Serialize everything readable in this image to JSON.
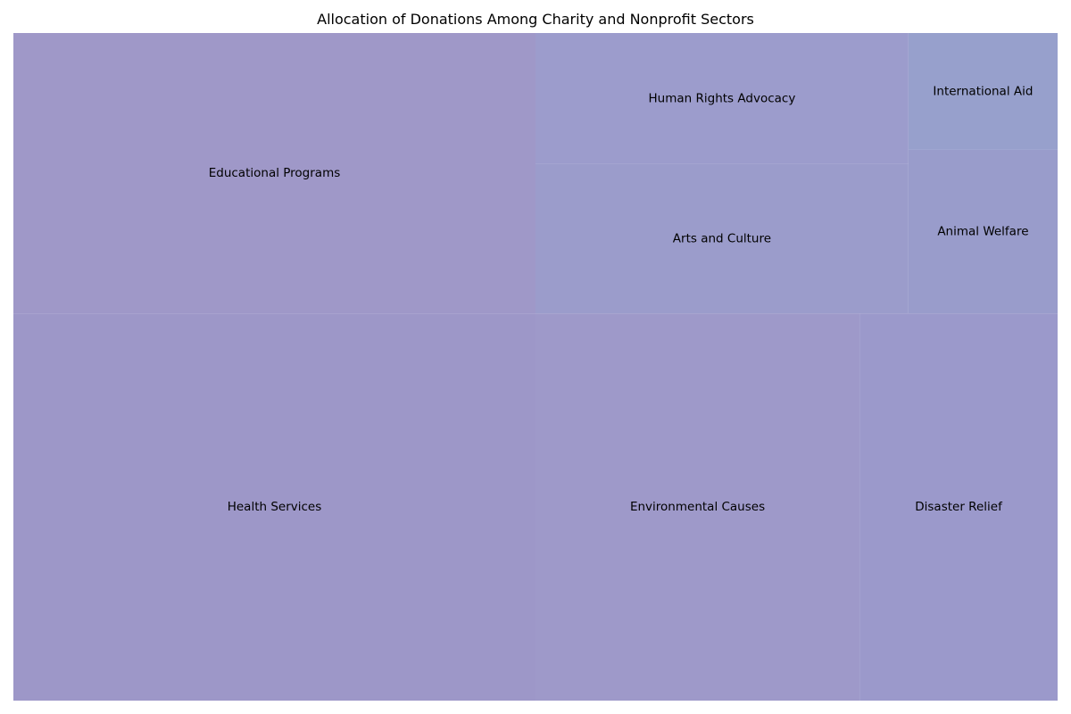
{
  "chart_data": {
    "type": "treemap",
    "title": "Allocation of Donations Among Charity and Nonprofit Sectors",
    "items": [
      {
        "label": "Educational Programs",
        "value": 21,
        "color": "#9f98c8"
      },
      {
        "label": "Health Services",
        "value": 29,
        "color": "#9d97c8"
      },
      {
        "label": "Human Rights Advocacy",
        "value": 7,
        "color": "#9c9ccc"
      },
      {
        "label": "Arts and Culture",
        "value": 8,
        "color": "#9b9ccb"
      },
      {
        "label": "International Aid",
        "value": 2.5,
        "color": "#97a0cc"
      },
      {
        "label": "Animal Welfare",
        "value": 3.5,
        "color": "#999ccb"
      },
      {
        "label": "Environmental Causes",
        "value": 18,
        "color": "#9e99c9"
      },
      {
        "label": "Disaster Relief",
        "value": 11,
        "color": "#9b99cb"
      }
    ]
  }
}
